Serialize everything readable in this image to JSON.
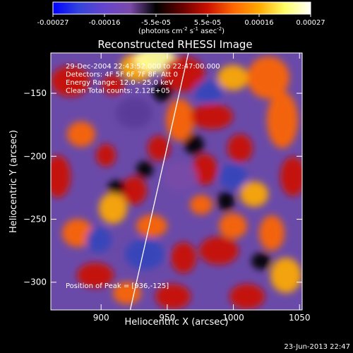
{
  "chart_data": {
    "type": "heatmap",
    "title": "Reconstructed RHESSI Image",
    "xlabel": "Heliocentric X (arcsec)",
    "ylabel": "Heliocentric Y (arcsec)",
    "xlim": [
      862,
      1052
    ],
    "ylim": [
      -322,
      -118
    ],
    "x_ticks": [
      900,
      950,
      1000,
      1050
    ],
    "y_ticks": [
      -150,
      -200,
      -250,
      -300
    ],
    "colorbar": {
      "min": -0.00027,
      "max": 0.00027,
      "ticks": [
        "-0.00027",
        "-0.00016",
        "-5.5e-05",
        "5.5e-05",
        "0.00016",
        "0.00027"
      ],
      "label_parts": [
        "(photons cm",
        "-2",
        " s",
        "-1",
        " asec",
        "-2",
        ")"
      ],
      "colors": [
        "#0000ff",
        "#3344dd",
        "#6644cc",
        "#7a4aa8",
        "#000000",
        "#660000",
        "#cc1100",
        "#ff6600",
        "#ffaa00",
        "#ffff66",
        "#ffffff"
      ]
    },
    "annotations": [
      "29-Dec-2004 22:43:52.000 to 22:47:00.000",
      "Detectors: 4F 5F 6F 7F 8F, Att 0",
      "Energy Range: 12.0 - 25.0 keV",
      "Clean    Total counts: 2.12E+05"
    ],
    "peak_label": "Position of Peak = [936,-125]",
    "peak": [
      936,
      -125
    ],
    "limb_line": [
      [
        922,
        -322
      ],
      [
        966,
        -118
      ]
    ]
  },
  "footer": {
    "date": "23-Jun-2013 22:47"
  }
}
